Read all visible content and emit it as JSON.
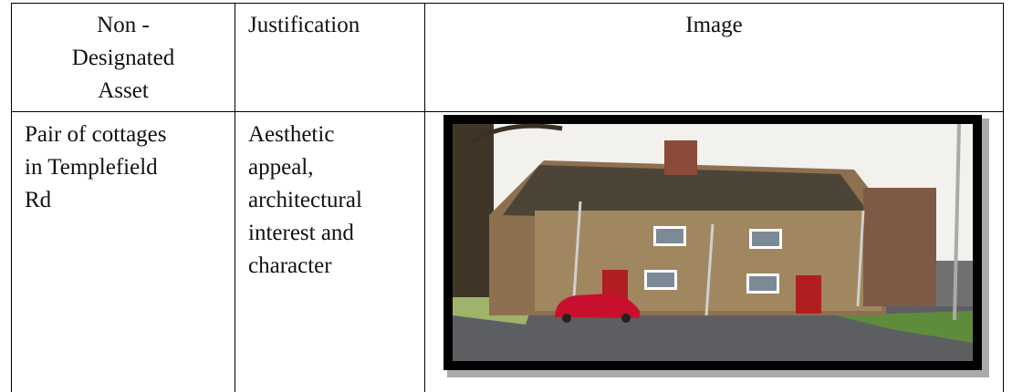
{
  "table": {
    "header": [
      "Non - Designated Asset",
      "Justification",
      "Image"
    ],
    "rows": [
      [
        "Pair of cottages in Templefield Rd",
        "Aesthetic appeal, architectural interest and character"
      ]
    ]
  }
}
